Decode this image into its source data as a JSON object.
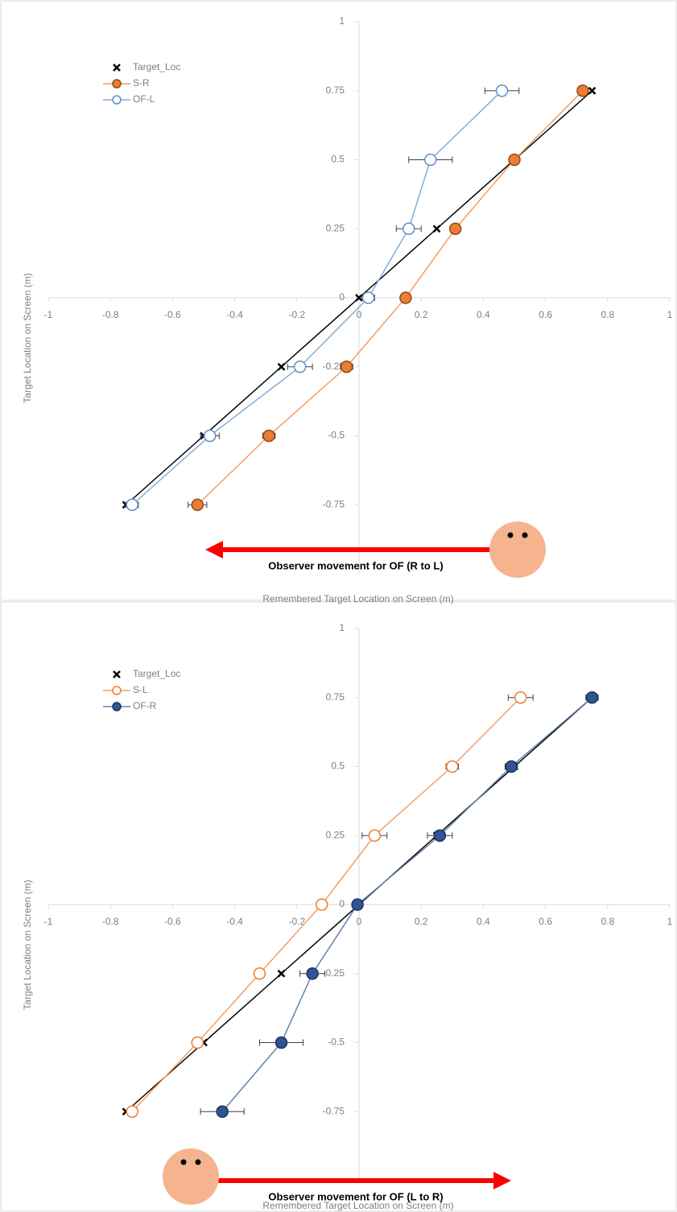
{
  "chart_data": [
    {
      "type": "line",
      "x_label": "Remembered Target Location on Screen (m)",
      "y_label": "Target Location on Screen (m)",
      "xlim": [
        -1,
        1
      ],
      "ylim": [
        -1,
        1
      ],
      "xticks": [
        -1,
        -0.8,
        -0.6,
        -0.4,
        -0.2,
        0,
        0.2,
        0.4,
        0.6,
        0.8,
        1
      ],
      "yticks": [
        1,
        0.75,
        0.5,
        0.25,
        0,
        -0.25,
        -0.5,
        -0.75
      ],
      "y": [
        0.75,
        0.5,
        0.25,
        0,
        -0.25,
        -0.5,
        -0.75
      ],
      "legend": "top-left",
      "annotation": {
        "text": "Observer movement for OF (R to L)",
        "direction": "left"
      },
      "series": [
        {
          "name": "Target_Loc",
          "color": "#000000",
          "marker": "x",
          "filled": true,
          "values": [
            0.75,
            0.5,
            0.25,
            0,
            -0.25,
            -0.5,
            -0.75
          ]
        },
        {
          "name": "S-R",
          "color": "#ed7d31",
          "marker": "circle",
          "filled": true,
          "values": [
            0.72,
            0.5,
            0.31,
            0.15,
            -0.04,
            -0.29,
            -0.52
          ],
          "errors": [
            0.01,
            0.01,
            0.01,
            0.01,
            0.02,
            0.02,
            0.03
          ]
        },
        {
          "name": "OF-L",
          "color": "#5b8fd0",
          "marker": "circle",
          "filled": false,
          "values": [
            0.46,
            0.23,
            0.16,
            0.03,
            -0.19,
            -0.48,
            -0.73
          ],
          "errors": [
            0.055,
            0.07,
            0.04,
            0.02,
            0.04,
            0.03,
            0.02
          ]
        }
      ]
    },
    {
      "type": "line",
      "x_label": "Remembered Target Location on Screen (m)",
      "y_label": "Target Location on Screen (m)",
      "xlim": [
        -1,
        1
      ],
      "ylim": [
        -1,
        1
      ],
      "xticks": [
        -1,
        -0.8,
        -0.6,
        -0.4,
        -0.2,
        0,
        0.2,
        0.4,
        0.6,
        0.8,
        1
      ],
      "yticks": [
        1,
        0.75,
        0.5,
        0.25,
        0,
        -0.25,
        -0.5,
        -0.75
      ],
      "y": [
        0.75,
        0.5,
        0.25,
        0,
        -0.25,
        -0.5,
        -0.75
      ],
      "legend": "top-left",
      "annotation": {
        "text": "Observer movement for OF (L to R)",
        "direction": "right"
      },
      "series": [
        {
          "name": "Target_Loc",
          "color": "#000000",
          "marker": "x",
          "filled": true,
          "values": [
            0.75,
            0.5,
            0.25,
            0,
            -0.25,
            -0.5,
            -0.75
          ]
        },
        {
          "name": "S-L",
          "color": "#ed7d31",
          "marker": "circle",
          "filled": false,
          "values": [
            0.52,
            0.3,
            0.05,
            -0.12,
            -0.32,
            -0.52,
            -0.73
          ],
          "errors": [
            0.04,
            0.02,
            0.04,
            0.01,
            0.01,
            0.01,
            0.01
          ]
        },
        {
          "name": "OF-R",
          "color": "#2f5597",
          "marker": "circle",
          "filled": true,
          "values": [
            0.75,
            0.49,
            0.26,
            -0.005,
            -0.15,
            -0.25,
            -0.44
          ],
          "errors": [
            0.02,
            0.02,
            0.04,
            0.01,
            0.04,
            0.07,
            0.07
          ]
        }
      ]
    }
  ]
}
